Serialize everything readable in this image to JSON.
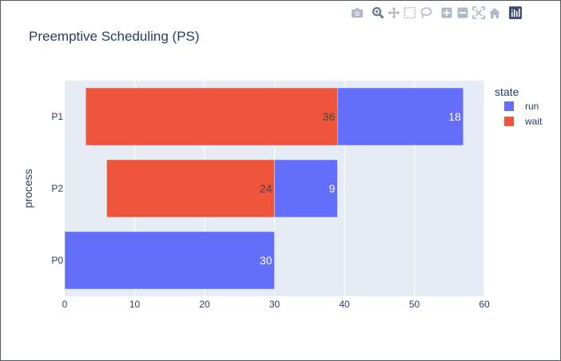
{
  "toolbar": {
    "icons": [
      "camera-icon",
      "zoom-icon",
      "pan-icon",
      "box-select-icon",
      "lasso-select-icon",
      "zoom-in-icon",
      "zoom-out-icon",
      "autoscale-icon",
      "reset-axes-icon",
      "plotly-logo-icon"
    ]
  },
  "colors": {
    "run": "#636efa",
    "wait": "#ef553b",
    "plot_bg": "#e5ecf6",
    "grid": "#ffffff",
    "text": "#2a3f5f",
    "modebar_icon": "#b0bac6",
    "modebar_active": "#6b7a8f",
    "logo_bg": "#3f4f75"
  },
  "chart_data": {
    "type": "bar",
    "orientation": "horizontal",
    "barmode": "stacked timeline",
    "title": "Preemptive Scheduling (PS)",
    "xlabel": "",
    "ylabel": "process",
    "xlim": [
      0,
      60
    ],
    "x_ticks": [
      0,
      10,
      20,
      30,
      40,
      50,
      60
    ],
    "categories": [
      "P1",
      "P2",
      "P0"
    ],
    "grid": true,
    "legend": {
      "title": "state",
      "placement": "top-right",
      "entries": [
        "run",
        "wait"
      ]
    },
    "series": [
      {
        "name": "wait",
        "bars": [
          {
            "category": "P1",
            "start": 3,
            "end": 39,
            "label": "36"
          },
          {
            "category": "P2",
            "start": 6,
            "end": 30,
            "label": "24"
          }
        ]
      },
      {
        "name": "run",
        "bars": [
          {
            "category": "P1",
            "start": 39,
            "end": 57,
            "label": "18"
          },
          {
            "category": "P2",
            "start": 30,
            "end": 39,
            "label": "9"
          },
          {
            "category": "P0",
            "start": 0,
            "end": 30,
            "label": "30"
          }
        ]
      }
    ]
  }
}
